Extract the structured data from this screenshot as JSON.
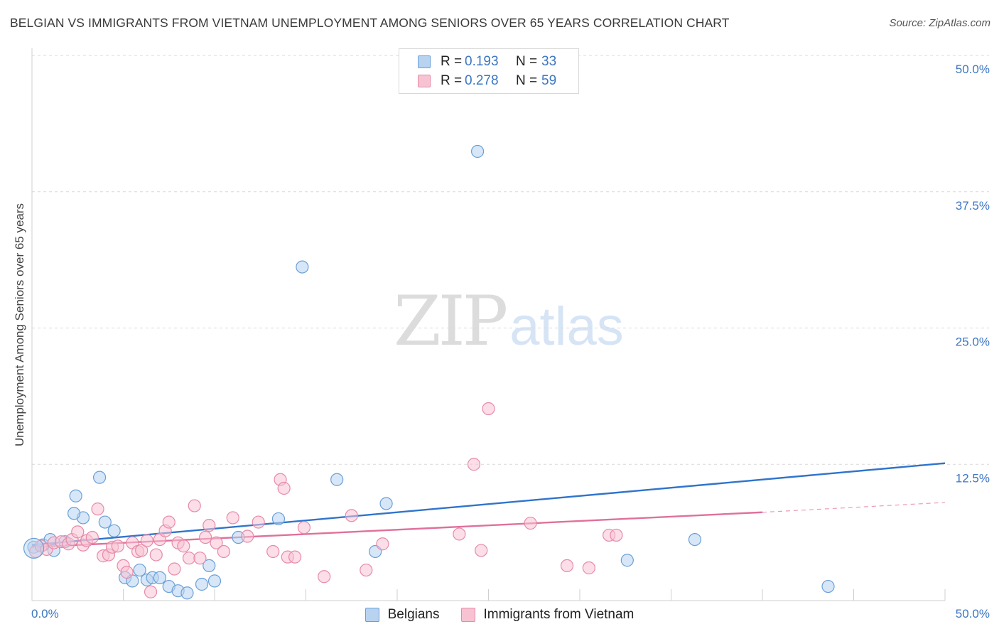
{
  "title": "BELGIAN VS IMMIGRANTS FROM VIETNAM UNEMPLOYMENT AMONG SENIORS OVER 65 YEARS CORRELATION CHART",
  "source": "Source: ZipAtlas.com",
  "watermark": {
    "zip": "ZIP",
    "atlas": "atlas"
  },
  "legend": {
    "belgians": {
      "r_label": "R =",
      "r_value": "0.193",
      "n_label": "N =",
      "n_value": "33"
    },
    "vietnam": {
      "r_label": "R =",
      "r_value": "0.278",
      "n_label": "N =",
      "n_value": "59"
    }
  },
  "bottom_legend": {
    "belgians": "Belgians",
    "vietnam": "Immigrants from Vietnam"
  },
  "colors": {
    "blue_fill": "#b8d3f0",
    "blue_stroke": "#6a9fd8",
    "blue_line": "#2f74cc",
    "pink_fill": "#f7c3d3",
    "pink_stroke": "#e78aa8",
    "pink_line": "#e0709a",
    "grid": "#d9d9d9",
    "tick_text": "#3b76c4"
  },
  "chart_data": {
    "type": "scatter",
    "title": "BELGIAN VS IMMIGRANTS FROM VIETNAM UNEMPLOYMENT AMONG SENIORS OVER 65 YEARS CORRELATION CHART",
    "xlabel": "",
    "ylabel": "Unemployment Among Seniors over 65 years",
    "xlim": [
      0,
      50
    ],
    "ylim": [
      0,
      50
    ],
    "x_tick_labels": [
      "0.0%",
      "50.0%"
    ],
    "y_ticks": [
      12.5,
      25.0,
      37.5,
      50.0
    ],
    "y_tick_labels": [
      "12.5%",
      "25.0%",
      "37.5%",
      "50.0%"
    ],
    "grid": true,
    "series": [
      {
        "name": "Belgians",
        "color": "blue",
        "points": [
          [
            0.1,
            4.9
          ],
          [
            0.6,
            5.1
          ],
          [
            1.0,
            5.6
          ],
          [
            1.2,
            4.6
          ],
          [
            1.8,
            5.4
          ],
          [
            2.4,
            9.6
          ],
          [
            2.8,
            7.6
          ],
          [
            2.3,
            8.0
          ],
          [
            3.7,
            11.3
          ],
          [
            4.0,
            7.2
          ],
          [
            4.5,
            6.4
          ],
          [
            5.1,
            2.1
          ],
          [
            5.5,
            1.8
          ],
          [
            5.9,
            2.8
          ],
          [
            6.3,
            1.9
          ],
          [
            6.6,
            2.1
          ],
          [
            7.0,
            2.1
          ],
          [
            7.5,
            1.3
          ],
          [
            8.0,
            0.9
          ],
          [
            8.5,
            0.7
          ],
          [
            9.3,
            1.5
          ],
          [
            9.7,
            3.2
          ],
          [
            10.0,
            1.8
          ],
          [
            11.3,
            5.8
          ],
          [
            13.5,
            7.5
          ],
          [
            14.8,
            30.6
          ],
          [
            16.7,
            11.1
          ],
          [
            18.8,
            4.5
          ],
          [
            19.4,
            8.9
          ],
          [
            24.4,
            41.2
          ],
          [
            32.6,
            3.7
          ],
          [
            36.3,
            5.6
          ],
          [
            43.6,
            1.3
          ]
        ]
      },
      {
        "name": "Immigrants from Vietnam",
        "color": "pink",
        "points": [
          [
            0.2,
            4.5
          ],
          [
            0.5,
            5.0
          ],
          [
            0.8,
            4.7
          ],
          [
            1.2,
            5.3
          ],
          [
            1.6,
            5.4
          ],
          [
            2.0,
            5.2
          ],
          [
            2.2,
            5.6
          ],
          [
            2.5,
            6.3
          ],
          [
            2.8,
            5.1
          ],
          [
            3.0,
            5.5
          ],
          [
            3.3,
            5.8
          ],
          [
            3.6,
            8.4
          ],
          [
            3.9,
            4.1
          ],
          [
            4.2,
            4.2
          ],
          [
            4.4,
            4.9
          ],
          [
            4.7,
            5.0
          ],
          [
            5.0,
            3.2
          ],
          [
            5.2,
            2.6
          ],
          [
            5.5,
            5.3
          ],
          [
            5.8,
            4.5
          ],
          [
            6.0,
            4.6
          ],
          [
            6.3,
            5.5
          ],
          [
            6.5,
            0.8
          ],
          [
            6.8,
            4.2
          ],
          [
            7.0,
            5.6
          ],
          [
            7.3,
            6.4
          ],
          [
            7.5,
            7.2
          ],
          [
            7.8,
            2.9
          ],
          [
            8.0,
            5.3
          ],
          [
            8.3,
            5.0
          ],
          [
            8.6,
            3.9
          ],
          [
            8.9,
            8.7
          ],
          [
            9.2,
            3.9
          ],
          [
            9.5,
            5.8
          ],
          [
            9.7,
            6.9
          ],
          [
            10.1,
            5.3
          ],
          [
            10.5,
            4.5
          ],
          [
            11.0,
            7.6
          ],
          [
            11.8,
            5.9
          ],
          [
            12.4,
            7.2
          ],
          [
            13.2,
            4.5
          ],
          [
            13.6,
            11.1
          ],
          [
            13.8,
            10.3
          ],
          [
            14.0,
            4.0
          ],
          [
            14.9,
            6.7
          ],
          [
            16.0,
            2.2
          ],
          [
            17.5,
            7.8
          ],
          [
            18.3,
            2.8
          ],
          [
            19.2,
            5.2
          ],
          [
            23.4,
            6.1
          ],
          [
            24.2,
            12.5
          ],
          [
            24.6,
            4.6
          ],
          [
            25.0,
            17.6
          ],
          [
            27.3,
            7.1
          ],
          [
            29.3,
            3.2
          ],
          [
            30.5,
            3.0
          ],
          [
            31.6,
            6.0
          ],
          [
            32.0,
            6.0
          ],
          [
            14.4,
            4.0
          ]
        ]
      }
    ],
    "trendlines": [
      {
        "series": "Belgians",
        "x": [
          0,
          50
        ],
        "y": [
          5.1,
          12.6
        ],
        "style": "solid"
      },
      {
        "series": "Immigrants from Vietnam",
        "x": [
          0,
          40
        ],
        "y": [
          4.9,
          8.1
        ],
        "style": "solid"
      },
      {
        "series": "Immigrants from Vietnam",
        "x": [
          40,
          50
        ],
        "y": [
          8.1,
          9.0
        ],
        "style": "dashed"
      }
    ]
  }
}
